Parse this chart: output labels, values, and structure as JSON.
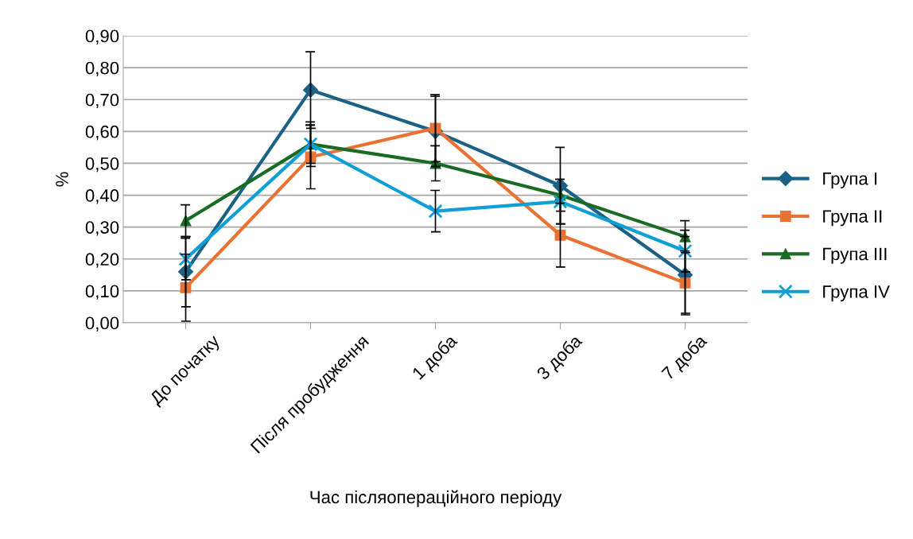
{
  "chart_data": {
    "type": "line",
    "xlabel": "Час післяопераційного періоду",
    "ylabel": "%",
    "categories": [
      "До початку",
      "Після пробудження",
      "1 доба",
      "3 доба",
      "7 доба"
    ],
    "series": [
      {
        "name": "Група I",
        "color": "#1b6186",
        "marker": "diamond",
        "values": [
          0.16,
          0.73,
          0.6,
          0.43,
          0.15
        ],
        "errors": [
          0.11,
          0.12,
          0.11,
          0.12,
          0.12
        ]
      },
      {
        "name": "Група II",
        "color": "#e97132",
        "marker": "square",
        "values": [
          0.11,
          0.52,
          0.61,
          0.275,
          0.125
        ],
        "errors": [
          0.105,
          0.1,
          0.105,
          0.1,
          0.1
        ]
      },
      {
        "name": "Група III",
        "color": "#196b24",
        "marker": "triangle",
        "values": [
          0.32,
          0.56,
          0.5,
          0.4,
          0.27
        ],
        "errors": [
          0.05,
          0.06,
          0.055,
          0.05,
          0.05
        ]
      },
      {
        "name": "Група IV",
        "color": "#0f9ed5",
        "marker": "cross",
        "values": [
          0.2,
          0.56,
          0.35,
          0.38,
          0.225
        ],
        "errors": [
          0.065,
          0.07,
          0.065,
          0.07,
          0.065
        ]
      }
    ],
    "ylim": [
      0,
      0.9
    ],
    "yticks": [
      {
        "value": 0,
        "label": "0,00"
      },
      {
        "value": 0.1,
        "label": "0,10"
      },
      {
        "value": 0.2,
        "label": "0,20"
      },
      {
        "value": 0.3,
        "label": "0,30"
      },
      {
        "value": 0.4,
        "label": "0,40"
      },
      {
        "value": 0.5,
        "label": "0,50"
      },
      {
        "value": 0.6,
        "label": "0,60"
      },
      {
        "value": 0.7,
        "label": "0,70"
      },
      {
        "value": 0.8,
        "label": "0,80"
      },
      {
        "value": 0.9,
        "label": "0,90"
      }
    ],
    "grid": "y",
    "legend": "right",
    "line_style": "solid"
  }
}
